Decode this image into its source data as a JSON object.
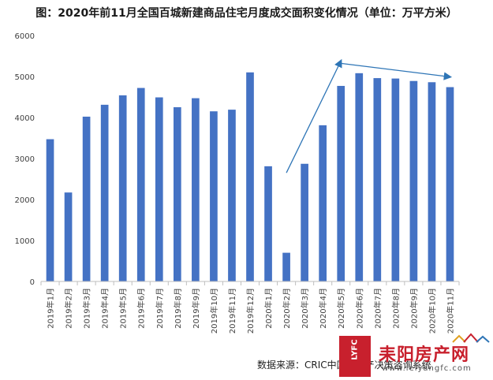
{
  "title": "图：2020年前11月全国百城新建商品住宅月度成交面积变化情况（单位：万平方米）",
  "source": "数据来源：CRIC中国房地产决策咨询系统",
  "watermark": {
    "badge": "LYFC",
    "name": "耒阳房产网",
    "url": "www.leiyangfc.com"
  },
  "colors": {
    "bar": "#4472C4",
    "arrow": "#2E75B6",
    "axis": "#BFBFBF",
    "text": "#404040",
    "watermark": "#C8202D"
  },
  "chart_data": {
    "type": "bar",
    "categories": [
      "2019年1月",
      "2019年2月",
      "2019年3月",
      "2019年4月",
      "2019年5月",
      "2019年6月",
      "2019年7月",
      "2019年8月",
      "2019年9月",
      "2019年10月",
      "2019年11月",
      "2019年12月",
      "2020年1月",
      "2020年2月",
      "2020年3月",
      "2020年4月",
      "2020年5月",
      "2020年6月",
      "2020年7月",
      "2020年8月",
      "2020年9月",
      "2020年10月",
      "2020年11月"
    ],
    "values": [
      3470,
      2170,
      4020,
      4310,
      4540,
      4720,
      4490,
      4250,
      4470,
      4150,
      4190,
      5100,
      2810,
      700,
      2870,
      3810,
      4770,
      5080,
      4960,
      4950,
      4890,
      4860,
      4740
    ],
    "ylim": [
      0,
      6000
    ],
    "yticks": [
      0,
      1000,
      2000,
      3000,
      4000,
      5000,
      6000
    ],
    "xlabel": "",
    "ylabel": "",
    "grid": false,
    "legend": "none",
    "annotations": [
      {
        "type": "arrow",
        "from": {
          "category": "2020年2月",
          "value": 2650
        },
        "to": {
          "category": "2020年5月",
          "value": 5380
        }
      },
      {
        "type": "arrow",
        "from": {
          "category": "2020年5月",
          "value": 5320
        },
        "to": {
          "category": "2020年11月",
          "value": 4990
        }
      }
    ]
  }
}
